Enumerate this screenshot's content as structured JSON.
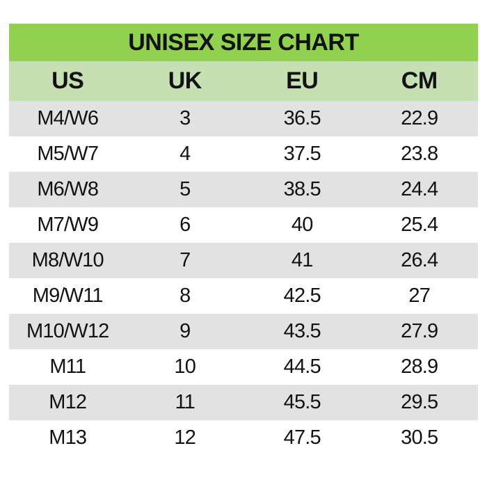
{
  "colors": {
    "title_bar_green": "#92D050",
    "header_row_green": "#C6E0B4",
    "row_alt_gray": "#E2E2E2",
    "row_white": "#FFFFFF",
    "text": "#121212"
  },
  "chart_data": {
    "type": "table",
    "title": "UNISEX SIZE CHART",
    "columns": [
      "US",
      "UK",
      "EU",
      "CM"
    ],
    "rows": [
      [
        "M4/W6",
        "3",
        "36.5",
        "22.9"
      ],
      [
        "M5/W7",
        "4",
        "37.5",
        "23.8"
      ],
      [
        "M6/W8",
        "5",
        "38.5",
        "24.4"
      ],
      [
        "M7/W9",
        "6",
        "40",
        "25.4"
      ],
      [
        "M8/W10",
        "7",
        "41",
        "26.4"
      ],
      [
        "M9/W11",
        "8",
        "42.5",
        "27"
      ],
      [
        "M10/W12",
        "9",
        "43.5",
        "27.9"
      ],
      [
        "M11",
        "10",
        "44.5",
        "28.9"
      ],
      [
        "M12",
        "11",
        "45.5",
        "29.5"
      ],
      [
        "M13",
        "12",
        "47.5",
        "30.5"
      ]
    ],
    "layout": {
      "row_striping": "odd rows gray, even rows white",
      "alignment": "all cells centered"
    }
  }
}
